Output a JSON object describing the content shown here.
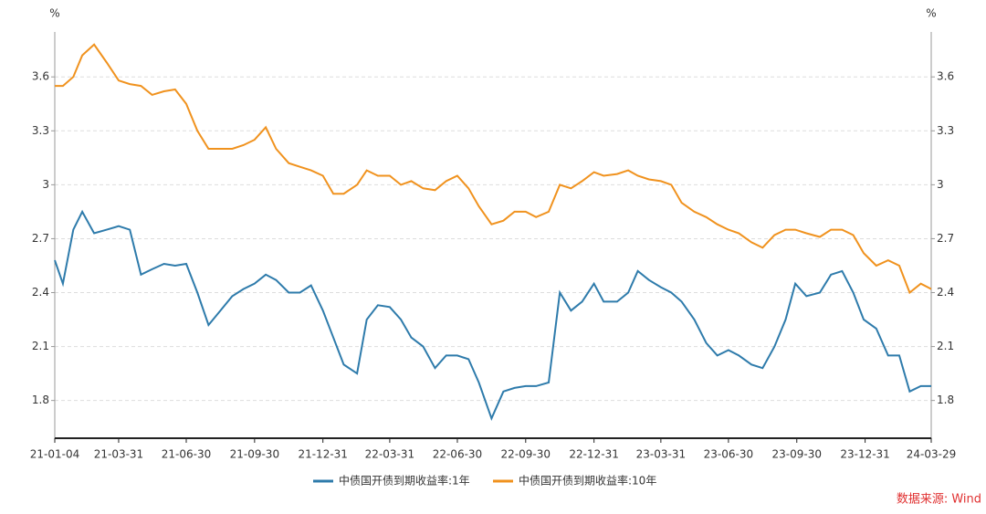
{
  "chart_data": {
    "type": "line",
    "y_unit": "%",
    "y2_unit": "%",
    "x": [
      "21-01-04",
      "21-01-15",
      "21-01-29",
      "21-02-10",
      "21-02-26",
      "21-03-15",
      "21-03-31",
      "21-04-15",
      "21-04-30",
      "21-05-15",
      "21-05-31",
      "21-06-15",
      "21-06-30",
      "21-07-15",
      "21-07-30",
      "21-08-15",
      "21-08-31",
      "21-09-15",
      "21-09-30",
      "21-10-15",
      "21-10-29",
      "21-11-15",
      "21-11-30",
      "21-12-15",
      "21-12-31",
      "22-01-14",
      "22-01-28",
      "22-02-15",
      "22-02-28",
      "22-03-15",
      "22-03-31",
      "22-04-15",
      "22-04-29",
      "22-05-15",
      "22-05-31",
      "22-06-15",
      "22-06-30",
      "22-07-15",
      "22-07-29",
      "22-08-15",
      "22-08-31",
      "22-09-15",
      "22-09-30",
      "22-10-14",
      "22-10-31",
      "22-11-15",
      "22-11-30",
      "22-12-15",
      "22-12-31",
      "23-01-13",
      "23-01-31",
      "23-02-15",
      "23-02-28",
      "23-03-15",
      "23-03-31",
      "23-04-14",
      "23-04-28",
      "23-05-15",
      "23-05-31",
      "23-06-15",
      "23-06-30",
      "23-07-14",
      "23-07-31",
      "23-08-15",
      "23-08-31",
      "23-09-15",
      "23-09-28",
      "23-10-13",
      "23-10-31",
      "23-11-15",
      "23-11-30",
      "23-12-15",
      "23-12-29",
      "24-01-15",
      "24-01-31",
      "24-02-15",
      "24-02-29",
      "24-03-15",
      "24-03-29"
    ],
    "xlim": [
      "21-01-04",
      "24-03-29"
    ],
    "xticks": [
      "21-01-04",
      "21-03-31",
      "21-06-30",
      "21-09-30",
      "21-12-31",
      "22-03-31",
      "22-06-30",
      "22-09-30",
      "22-12-31",
      "23-03-31",
      "23-06-30",
      "23-09-30",
      "23-12-31",
      "24-03-29"
    ],
    "ylim": [
      1.59,
      3.85
    ],
    "yticks": [
      1.8,
      2.1,
      2.4,
      2.7,
      3,
      3.3,
      3.6
    ],
    "y2lim": [
      1.59,
      3.85
    ],
    "y2ticks": [
      1.8,
      2.1,
      2.4,
      2.7,
      3,
      3.3,
      3.6
    ],
    "grid": true,
    "legend": "bottom",
    "series": [
      {
        "name": "中债国开债到期收益率:1年",
        "color": "#2e7bab",
        "values": [
          2.58,
          2.45,
          2.75,
          2.85,
          2.73,
          2.75,
          2.77,
          2.75,
          2.5,
          2.53,
          2.56,
          2.55,
          2.56,
          2.4,
          2.22,
          2.3,
          2.38,
          2.42,
          2.45,
          2.5,
          2.47,
          2.4,
          2.4,
          2.44,
          2.3,
          2.15,
          2.0,
          1.95,
          2.25,
          2.33,
          2.32,
          2.25,
          2.15,
          2.1,
          1.98,
          2.05,
          2.05,
          2.03,
          1.9,
          1.7,
          1.85,
          1.87,
          1.88,
          1.88,
          1.9,
          2.4,
          2.3,
          2.35,
          2.45,
          2.35,
          2.35,
          2.4,
          2.52,
          2.47,
          2.43,
          2.4,
          2.35,
          2.25,
          2.12,
          2.05,
          2.08,
          2.05,
          2.0,
          1.98,
          2.1,
          2.25,
          2.45,
          2.38,
          2.4,
          2.5,
          2.52,
          2.4,
          2.25,
          2.2,
          2.05,
          2.05,
          1.85,
          1.88,
          1.88
        ]
      },
      {
        "name": "中债国开债到期收益率:10年",
        "color": "#f0921e",
        "axis": "y2",
        "values": [
          3.55,
          3.55,
          3.6,
          3.72,
          3.78,
          3.68,
          3.58,
          3.56,
          3.55,
          3.5,
          3.52,
          3.53,
          3.45,
          3.3,
          3.2,
          3.2,
          3.2,
          3.22,
          3.25,
          3.32,
          3.2,
          3.12,
          3.1,
          3.08,
          3.05,
          2.95,
          2.95,
          3.0,
          3.08,
          3.05,
          3.05,
          3.0,
          3.02,
          2.98,
          2.97,
          3.02,
          3.05,
          2.98,
          2.88,
          2.78,
          2.8,
          2.85,
          2.85,
          2.82,
          2.85,
          3.0,
          2.98,
          3.02,
          3.07,
          3.05,
          3.06,
          3.08,
          3.05,
          3.03,
          3.02,
          3.0,
          2.9,
          2.85,
          2.82,
          2.78,
          2.75,
          2.73,
          2.68,
          2.65,
          2.72,
          2.75,
          2.75,
          2.73,
          2.71,
          2.75,
          2.75,
          2.72,
          2.62,
          2.55,
          2.58,
          2.55,
          2.4,
          2.45,
          2.42
        ]
      }
    ],
    "source": "数据来源: Wind"
  }
}
